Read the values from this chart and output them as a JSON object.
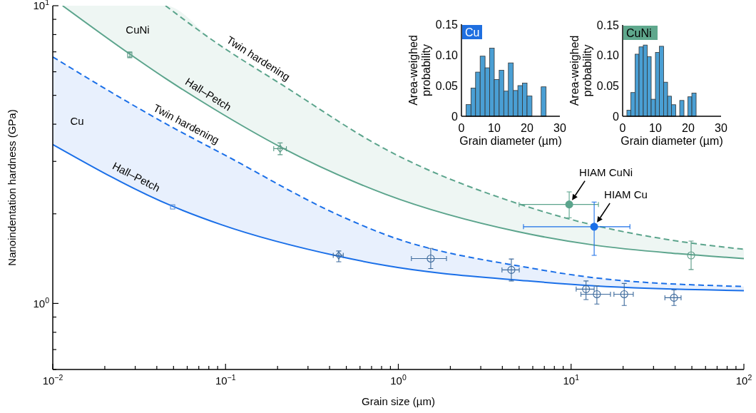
{
  "chart_data": [
    {
      "type": "line",
      "xlabel": "Grain size (µm)",
      "ylabel": "Nanoindentation hardness (GPa)",
      "log": "xy",
      "xlim": [
        0.01,
        100
      ],
      "xticks": [
        {
          "value": 0.01,
          "label": "10$^{−2}$"
        },
        {
          "value": 0.02,
          "label": null
        },
        {
          "value": 0.03,
          "label": null
        },
        {
          "value": 0.04,
          "label": null
        },
        {
          "value": 0.05,
          "label": null
        },
        {
          "value": 0.06,
          "label": null
        },
        {
          "value": 0.07,
          "label": null
        },
        {
          "value": 0.08,
          "label": null
        },
        {
          "value": 0.09,
          "label": null
        },
        {
          "value": 0.1,
          "label": "10$^{−1}$"
        },
        {
          "value": 0.2,
          "label": null
        },
        {
          "value": 0.3,
          "label": null
        },
        {
          "value": 0.4,
          "label": null
        },
        {
          "value": 0.5,
          "label": null
        },
        {
          "value": 0.6,
          "label": null
        },
        {
          "value": 0.7,
          "label": null
        },
        {
          "value": 0.8,
          "label": null
        },
        {
          "value": 0.9,
          "label": null
        },
        {
          "value": 1,
          "label": "10$^{0}$"
        },
        {
          "value": 2,
          "label": null
        },
        {
          "value": 3,
          "label": null
        },
        {
          "value": 4,
          "label": null
        },
        {
          "value": 5,
          "label": null
        },
        {
          "value": 6,
          "label": null
        },
        {
          "value": 7,
          "label": null
        },
        {
          "value": 8,
          "label": null
        },
        {
          "value": 9,
          "label": null
        },
        {
          "value": 10,
          "label": "10$^{1}$"
        },
        {
          "value": 20,
          "label": null
        },
        {
          "value": 30,
          "label": null
        },
        {
          "value": 40,
          "label": null
        },
        {
          "value": 50,
          "label": null
        },
        {
          "value": 60,
          "label": null
        },
        {
          "value": 70,
          "label": null
        },
        {
          "value": 80,
          "label": null
        },
        {
          "value": 90,
          "label": null
        },
        {
          "value": 100,
          "label": "10$^{2}$"
        }
      ],
      "ylim": [
        0.6,
        10
      ],
      "yticks": [
        {
          "value": 0.6,
          "label": null
        },
        {
          "value": 0.7,
          "label": null
        },
        {
          "value": 0.8,
          "label": null
        },
        {
          "value": 0.9,
          "label": null
        },
        {
          "value": 1,
          "label": "10$^{0}$"
        },
        {
          "value": 2,
          "label": null
        },
        {
          "value": 3,
          "label": null
        },
        {
          "value": 4,
          "label": null
        },
        {
          "value": 5,
          "label": null
        },
        {
          "value": 6,
          "label": null
        },
        {
          "value": 7,
          "label": null
        },
        {
          "value": 8,
          "label": null
        },
        {
          "value": 9,
          "label": null
        },
        {
          "value": 10,
          "label": "10$^{1}$"
        }
      ],
      "annotations": [
        "CuNi",
        "Cu"
      ],
      "series": [
        {
          "type": "line",
          "name": "Hall–Petch",
          "color": "#5ba48c",
          "line_style": "solid",
          "x": [
            0.0114,
            0.0277,
            0.0449,
            0.0857,
            0.215,
            0.839,
            4.97,
            13.6,
            41.3,
            100
          ],
          "values": [
            10,
            6.9,
            5.7,
            4.5,
            3.32,
            2.33,
            1.74,
            1.57,
            1.47,
            1.415
          ],
          "lower": [
            10,
            6.9,
            5.7,
            4.5,
            3.32,
            2.33,
            1.74,
            1.57,
            1.47,
            1.415
          ],
          "upper": [
            10,
            10,
            10,
            7.6,
            5.4,
            3.3,
            2.16,
            1.83,
            1.62,
            1.52
          ]
        },
        {
          "type": "line",
          "name": "Twin hardening",
          "color": "#5ba48c",
          "line_style": "dashed",
          "x": [
            0.0449,
            0.0857,
            0.215,
            0.839,
            4.97,
            13.6,
            41.3,
            100
          ],
          "values": [
            10,
            7.6,
            5.4,
            3.3,
            2.16,
            1.83,
            1.62,
            1.52
          ]
        },
        {
          "type": "line",
          "name": "Hall–Petch",
          "color": "#1a6fe8",
          "line_style": "solid",
          "x": [
            0.01,
            0.0494,
            0.0942,
            0.452,
            0.847,
            5.61,
            13.6,
            100
          ],
          "values": [
            3.42,
            2.12,
            1.84,
            1.44,
            1.34,
            1.19,
            1.145,
            1.104
          ],
          "lower": [
            3.42,
            2.12,
            1.84,
            1.44,
            1.34,
            1.19,
            1.145,
            1.104
          ],
          "upper": [
            6.73,
            3.9,
            3.2,
            1.98,
            1.7,
            1.32,
            1.22,
            1.14
          ]
        },
        {
          "type": "line",
          "name": "Twin hardening",
          "color": "#1a6fe8",
          "line_style": "dashed",
          "x": [
            0.01,
            0.0494,
            0.0942,
            0.452,
            0.847,
            5.61,
            13.6,
            100
          ],
          "values": [
            6.73,
            3.9,
            3.2,
            1.98,
            1.7,
            1.32,
            1.22,
            1.14
          ]
        },
        {
          "type": "scatter",
          "color": "#5b9a86",
          "marker": "square",
          "x": [
            0.0279
          ],
          "values": [
            6.84
          ],
          "errors": [
            0.15
          ]
        },
        {
          "type": "scatter",
          "color": "#5b9a86",
          "marker": "diamond",
          "x": [
            0.207
          ],
          "values": [
            3.31
          ],
          "errors": [
            0.15
          ],
          "xerrors": [
            [
              0.19,
              0.225
            ]
          ]
        },
        {
          "type": "scatter",
          "color": "#5b9a86",
          "marker": "circle",
          "x": [
            49.5
          ],
          "values": [
            1.45
          ],
          "errors": [
            [
              1.3,
              1.62
            ]
          ]
        },
        {
          "type": "scatter",
          "name": "HIAM CuNi",
          "color": "#5ba48c",
          "marker": "circle",
          "x": [
            9.75
          ],
          "values": [
            2.15
          ],
          "errors": [
            [
              1.94,
              2.37
            ]
          ],
          "xerrors": [
            [
              5.0,
              14.4
            ]
          ]
        },
        {
          "type": "scatter",
          "name": "HIAM Cu",
          "color": "#1a6fe8",
          "marker": "circle",
          "x": [
            13.6
          ],
          "values": [
            1.81
          ],
          "errors": [
            [
              1.45,
              2.19
            ]
          ],
          "xerrors": [
            [
              5.3,
              21.9
            ]
          ]
        },
        {
          "type": "scatter",
          "color": "#5b8fd6",
          "marker": "square",
          "x": [
            0.0494
          ],
          "values": [
            2.11
          ]
        },
        {
          "type": "scatter",
          "color": "#3d6a9c",
          "marker": "diamond",
          "x": [
            0.452
          ],
          "values": [
            1.45
          ],
          "errors": [
            [
              1.38,
              1.5
            ]
          ],
          "xerrors": [
            [
              0.42,
              0.48
            ]
          ]
        },
        {
          "type": "scatter",
          "color": "#3d6a9c",
          "marker": "circle",
          "x": [
            1.54,
            4.51,
            12.2,
            14.1,
            20.3,
            39.4
          ],
          "values": [
            1.415,
            1.296,
            1.117,
            1.074,
            1.074,
            1.045
          ],
          "errors": [
            [
              1.31,
              1.53
            ],
            [
              1.19,
              1.41
            ],
            [
              1.03,
              1.19
            ],
            [
              0.995,
              1.147
            ],
            [
              0.984,
              1.167
            ],
            [
              0.984,
              1.11
            ]
          ],
          "xerrors": [
            [
              1.19,
              1.9
            ],
            [
              3.98,
              5.01
            ],
            [
              10.7,
              13.6
            ],
            [
              11.4,
              16.9
            ],
            [
              17.7,
              22.9
            ],
            [
              34.9,
              43.3
            ]
          ]
        }
      ]
    },
    {
      "type": "histogram",
      "title": "Cu",
      "xlabel": "Grain diameter (µm)",
      "ylabel": "Area-weighed probability",
      "color": "#4a9fd4",
      "xlim": [
        0,
        30
      ],
      "xticks": [
        0,
        10,
        20,
        30
      ],
      "ylim": [
        0,
        0.15
      ],
      "yticks": [
        0,
        {
          "value": 0.05,
          "label": "0.05"
        },
        {
          "value": 0.1,
          "label": "0.10"
        },
        {
          "value": 0.15,
          "label": "0.15"
        }
      ],
      "bins": [
        1.4,
        2.9,
        4.3,
        5.7,
        7.2,
        8.6,
        10.0,
        11.5,
        12.9,
        14.3,
        15.8,
        17.2,
        18.6,
        20.0,
        21.5,
        22.9,
        24.3,
        25.8
      ],
      "values": [
        0.019,
        0.046,
        0.072,
        0.098,
        0.079,
        0.111,
        0.06,
        0.075,
        0.041,
        0.087,
        0.042,
        0.05,
        0.054,
        0.033,
        0,
        0,
        0.048
      ]
    },
    {
      "type": "histogram",
      "title": "CuNi",
      "xlabel": "Grain diameter (µm)",
      "ylabel": "Area-weighed probability",
      "color": "#4a9fd4",
      "xlim": [
        0,
        30
      ],
      "xticks": [
        0,
        10,
        20,
        30
      ],
      "ylim": [
        0,
        0.15
      ],
      "yticks": [
        0,
        {
          "value": 0.05,
          "label": "0.05"
        },
        {
          "value": 0.1,
          "label": "0.10"
        },
        {
          "value": 0.15,
          "label": "0.15"
        }
      ],
      "bins": [
        1.3,
        2.5,
        3.8,
        5.0,
        6.3,
        7.5,
        8.7,
        10.0,
        11.2,
        12.5,
        13.7,
        14.9,
        16.2,
        17.4,
        18.7,
        19.9,
        21.1,
        22.4
      ],
      "values": [
        0.01,
        0.039,
        0.102,
        0.114,
        0.117,
        0.098,
        0.028,
        0.105,
        0.115,
        0.056,
        0.033,
        0.019,
        0,
        0.026,
        0,
        0.032,
        0.038
      ]
    }
  ]
}
